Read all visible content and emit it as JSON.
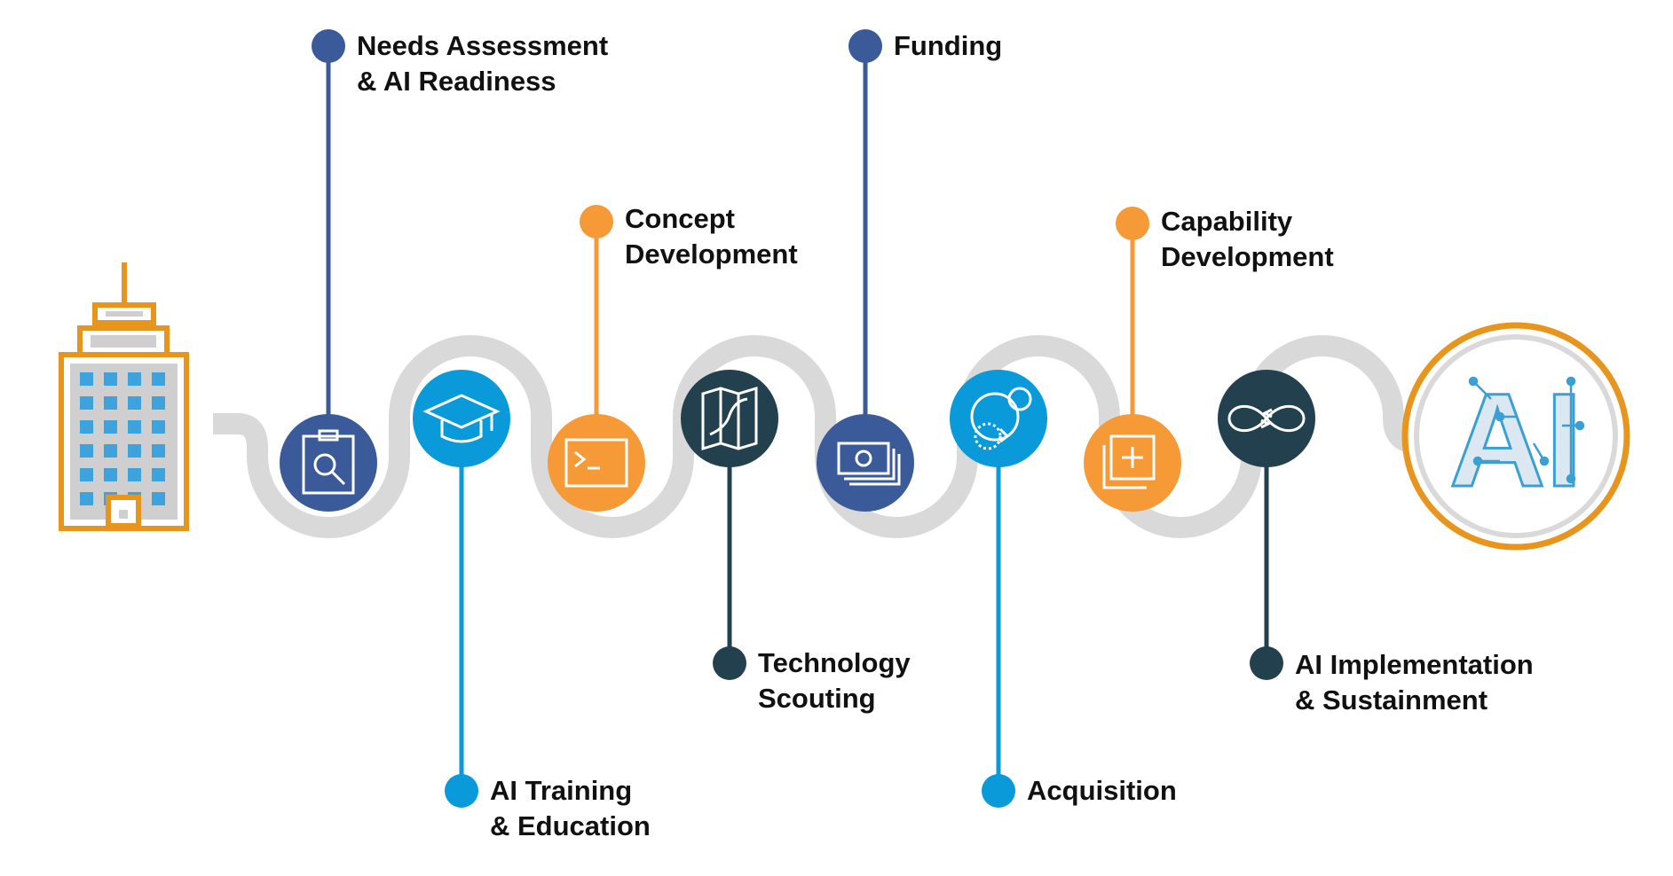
{
  "colors": {
    "navy": "#3a5a9a",
    "sky": "#0a9ad9",
    "orange": "#f59a36",
    "slate": "#23404f",
    "road": "#d9d9d9",
    "building": "#e8951e",
    "window": "#3ea3dc",
    "ai_icon": "#3a9fd3"
  },
  "start": {
    "icon": "office-building-icon"
  },
  "end": {
    "icon": "ai-circuit-icon",
    "text": "AI"
  },
  "stages": [
    {
      "id": "needs",
      "label_lines": [
        "Needs Assessment",
        "& AI Readiness"
      ],
      "color": "navy",
      "icon": "clipboard-search-icon",
      "label_side": "above"
    },
    {
      "id": "training",
      "label_lines": [
        "AI Training",
        "& Education"
      ],
      "color": "sky",
      "icon": "graduation-cap-icon",
      "label_side": "below"
    },
    {
      "id": "concept",
      "label_lines": [
        "Concept",
        "Development"
      ],
      "color": "orange",
      "icon": "terminal-icon",
      "label_side": "above"
    },
    {
      "id": "scouting",
      "label_lines": [
        "Technology",
        "Scouting"
      ],
      "color": "slate",
      "icon": "map-route-icon",
      "label_side": "below"
    },
    {
      "id": "funding",
      "label_lines": [
        "Funding"
      ],
      "color": "navy",
      "icon": "money-stack-icon",
      "label_side": "above"
    },
    {
      "id": "acquisition",
      "label_lines": [
        "Acquisition"
      ],
      "color": "sky",
      "icon": "acquire-circles-icon",
      "label_side": "below"
    },
    {
      "id": "capability",
      "label_lines": [
        "Capability",
        "Development"
      ],
      "color": "orange",
      "icon": "add-layer-icon",
      "label_side": "above"
    },
    {
      "id": "implementation",
      "label_lines": [
        "AI Implementation",
        "& Sustainment"
      ],
      "color": "slate",
      "icon": "infinity-cycle-icon",
      "label_side": "below"
    }
  ]
}
